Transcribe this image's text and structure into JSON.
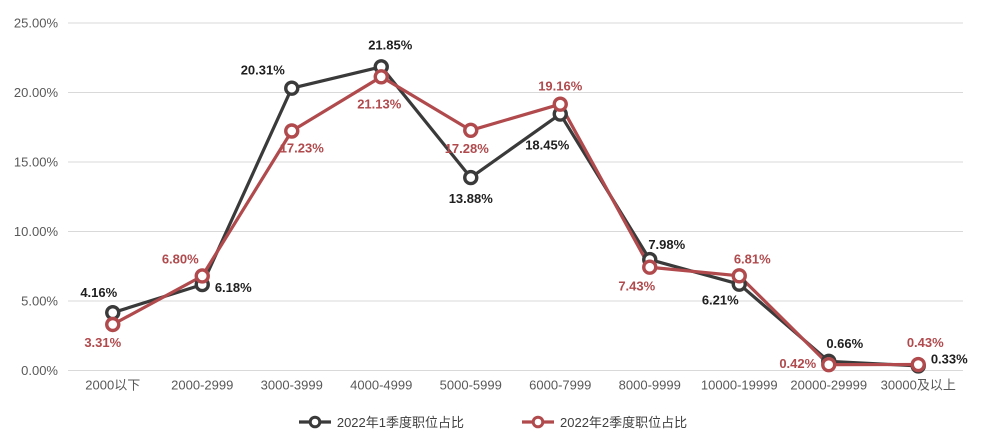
{
  "chart_data": {
    "type": "line",
    "title": "",
    "xlabel": "",
    "ylabel": "",
    "categories": [
      "2000以下",
      "2000-2999",
      "3000-3999",
      "4000-4999",
      "5000-5999",
      "6000-7999",
      "8000-9999",
      "10000-19999",
      "20000-29999",
      "30000及以上"
    ],
    "series": [
      {
        "name": "2022年1季度职位占比",
        "color": "#3a3a3a",
        "label_color": "#1f1f1f",
        "values": [
          4.16,
          6.18,
          20.31,
          21.85,
          13.88,
          18.45,
          7.98,
          6.21,
          0.66,
          0.33
        ],
        "labels": [
          "4.16%",
          "6.18%",
          "20.31%",
          "21.85%",
          "13.88%",
          "18.45%",
          "7.98%",
          "6.21%",
          "0.66%",
          "0.33%"
        ],
        "label_offsets": [
          [
            -14,
            -20
          ],
          [
            31,
            3
          ],
          [
            -29,
            -18
          ],
          [
            9,
            -22
          ],
          [
            0,
            21
          ],
          [
            -13,
            31
          ],
          [
            17,
            -15
          ],
          [
            -19,
            16
          ],
          [
            16,
            -18
          ],
          [
            31,
            -7
          ]
        ]
      },
      {
        "name": "2022年2季度职位占比",
        "color": "#b04a4d",
        "label_color": "#b04a4d",
        "values": [
          3.31,
          6.8,
          17.23,
          21.13,
          17.28,
          19.16,
          7.43,
          6.81,
          0.42,
          0.43
        ],
        "labels": [
          "3.31%",
          "6.80%",
          "17.23%",
          "21.13%",
          "17.28%",
          "19.16%",
          "7.43%",
          "6.81%",
          "0.42%",
          "0.43%"
        ],
        "label_offsets": [
          [
            -10,
            18
          ],
          [
            -22,
            -17
          ],
          [
            10,
            17
          ],
          [
            -2,
            27
          ],
          [
            -4,
            18
          ],
          [
            0,
            -18
          ],
          [
            -13,
            19
          ],
          [
            13,
            -17
          ],
          [
            -31,
            -1
          ],
          [
            7,
            -22
          ]
        ]
      }
    ],
    "ylim": [
      0,
      25
    ],
    "yticks": [
      0,
      5,
      10,
      15,
      20,
      25
    ],
    "ytick_labels": [
      "0.00%",
      "5.00%",
      "10.00%",
      "15.00%",
      "20.00%",
      "25.00%"
    ],
    "grid": true,
    "legend_position": "bottom",
    "axis_label_color": "#595959",
    "grid_color": "#d9d9d9",
    "background_color": "#ffffff"
  }
}
